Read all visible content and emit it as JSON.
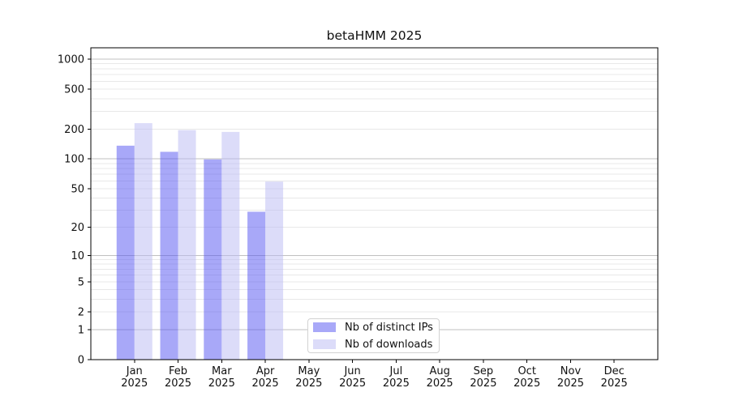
{
  "title": "betaHMM 2025",
  "legend": {
    "items": [
      {
        "label": "Nb of distinct IPs",
        "color": "#a8a8f8"
      },
      {
        "label": "Nb of downloads",
        "color": "#dcdcf9"
      }
    ]
  },
  "chart_data": {
    "type": "bar",
    "title": "betaHMM 2025",
    "yscale": "log1p",
    "ylim": [
      0,
      1300
    ],
    "yticks": [
      0,
      1,
      2,
      5,
      10,
      20,
      50,
      100,
      200,
      500,
      1000
    ],
    "grid": true,
    "grid_major_color": "#c0c0c0",
    "grid_minor_color": "#e8e8e8",
    "legend_position": "lower center-left inside plot",
    "categories": [
      "Jan 2025",
      "Feb 2025",
      "Mar 2025",
      "Apr 2025",
      "May 2025",
      "Jun 2025",
      "Jul 2025",
      "Aug 2025",
      "Sep 2025",
      "Oct 2025",
      "Nov 2025",
      "Dec 2025"
    ],
    "series": [
      {
        "name": "Nb of distinct IPs",
        "color": "#a8a8f8",
        "values": [
          136,
          118,
          99,
          29,
          0,
          0,
          0,
          0,
          0,
          0,
          0,
          0
        ]
      },
      {
        "name": "Nb of downloads",
        "color": "#dcdcf9",
        "values": [
          229,
          195,
          187,
          59,
          0,
          0,
          0,
          0,
          0,
          0,
          0,
          0
        ]
      }
    ]
  }
}
